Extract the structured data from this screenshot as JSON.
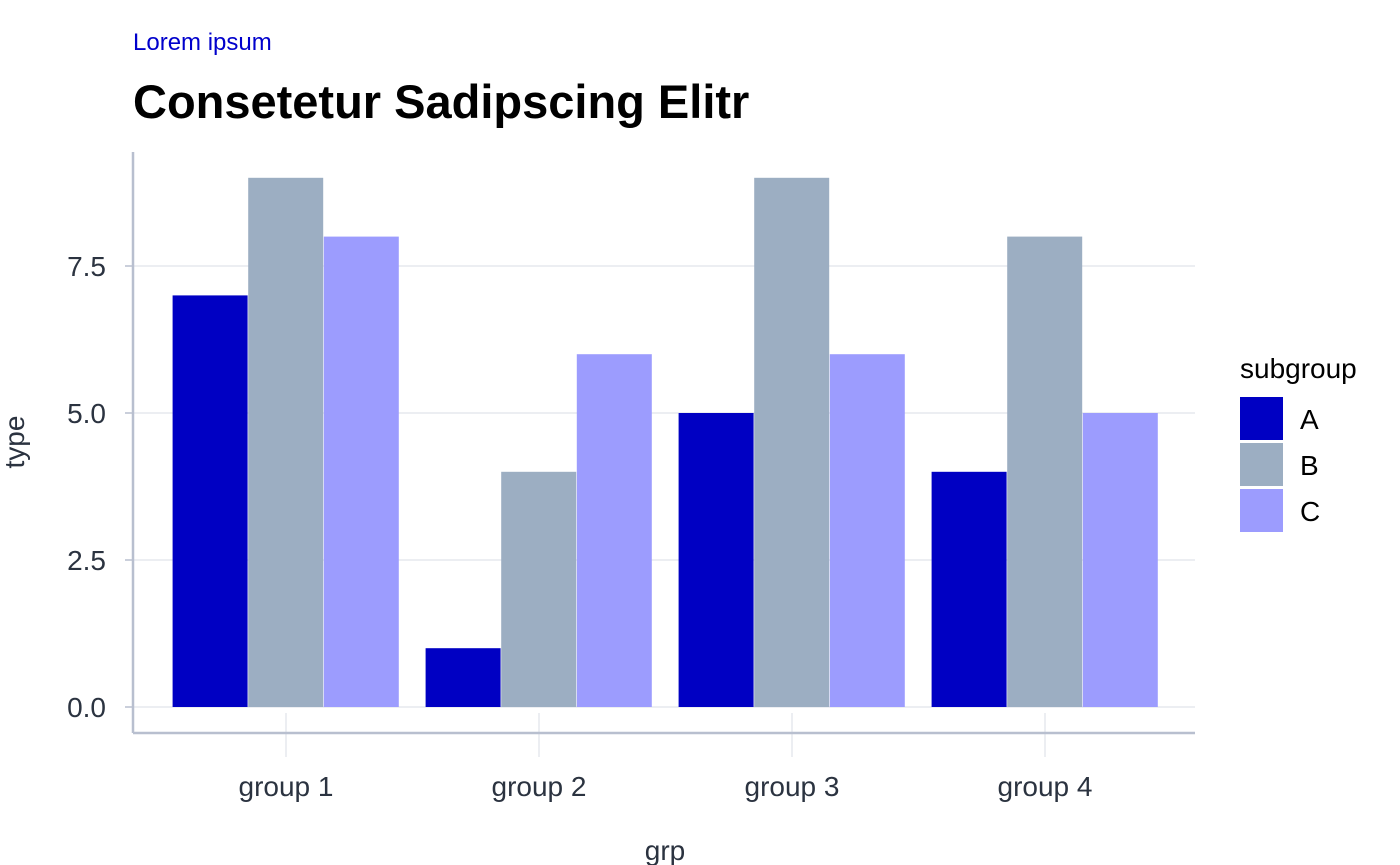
{
  "colors": {
    "A": "#0000c3",
    "B": "#9caec2",
    "C": "#9c9cfe",
    "subtitle": "#0000cc",
    "grid": "#e6e8ee",
    "axis": "#b8bfcf",
    "text": "#2b3340"
  },
  "chart_data": {
    "type": "bar",
    "subtitle": "Lorem ipsum",
    "title": "Consetetur Sadipscing Elitr",
    "xlabel": "grp",
    "ylabel": "type",
    "categories": [
      "group 1",
      "group 2",
      "group 3",
      "group 4"
    ],
    "series": [
      {
        "name": "A",
        "values": [
          7,
          1,
          5,
          4
        ]
      },
      {
        "name": "B",
        "values": [
          9,
          4,
          9,
          8
        ]
      },
      {
        "name": "C",
        "values": [
          8,
          6,
          6,
          5
        ]
      }
    ],
    "yticks": [
      0,
      2.5,
      5,
      7.5
    ],
    "ytick_labels": [
      "0.0",
      "2.5",
      "5.0",
      "7.5"
    ],
    "ylim": [
      0,
      9.45
    ],
    "grid": true,
    "legend": {
      "title": "subgroup",
      "position": "right"
    }
  }
}
